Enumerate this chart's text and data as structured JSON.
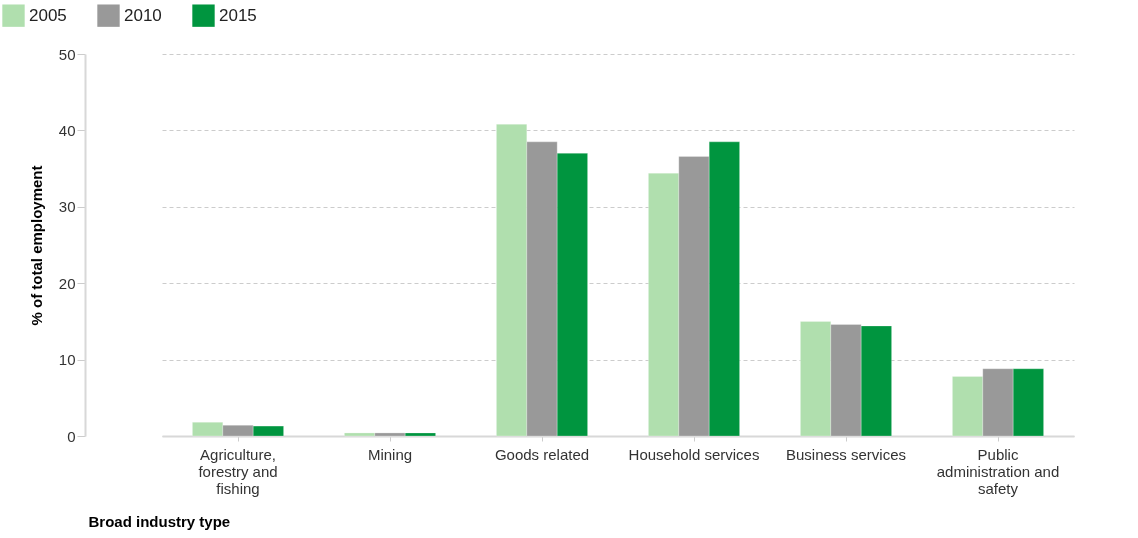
{
  "chart_data": {
    "type": "bar",
    "xlabel": "Broad industry type",
    "ylabel": "% of total employment",
    "categories": [
      "Agriculture, forestry and fishing",
      "Mining",
      "Goods related",
      "Household services",
      "Business services",
      "Public administration and safety"
    ],
    "series": [
      {
        "name": "2005",
        "color": "#b0dfae",
        "values": [
          1.8,
          0.4,
          40.8,
          34.4,
          15.0,
          7.8
        ]
      },
      {
        "name": "2010",
        "color": "#999999",
        "values": [
          1.4,
          0.4,
          38.5,
          36.6,
          14.6,
          8.8
        ]
      },
      {
        "name": "2015",
        "color": "#00953f",
        "values": [
          1.3,
          0.4,
          37.0,
          38.5,
          14.4,
          8.8
        ]
      }
    ],
    "ylim": [
      0,
      50
    ],
    "yticks": [
      0,
      10,
      20,
      30,
      40,
      50
    ],
    "grid": "y",
    "legend": "top left"
  }
}
